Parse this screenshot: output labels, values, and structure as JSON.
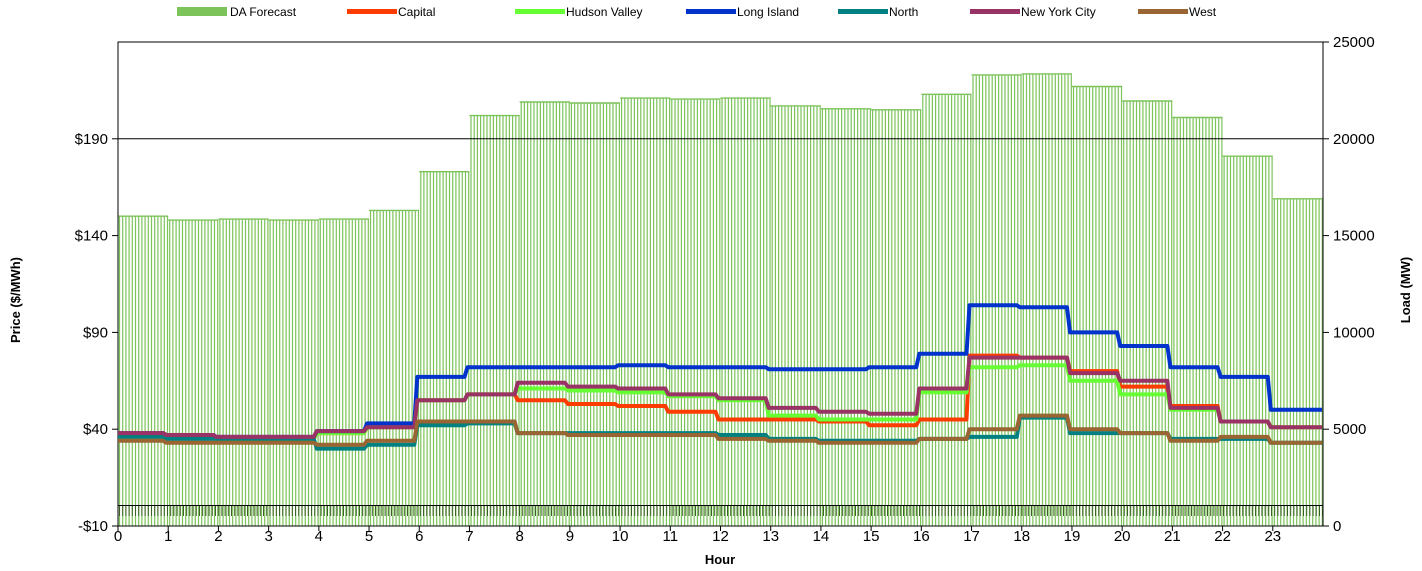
{
  "chart_data": {
    "type": "line",
    "title": "",
    "xlabel": "Hour",
    "ylabel_left": "Price ($/MWh)",
    "ylabel_right": "Load (MW)",
    "x": [
      0,
      1,
      2,
      3,
      4,
      5,
      6,
      7,
      8,
      9,
      10,
      11,
      12,
      13,
      14,
      15,
      16,
      17,
      18,
      19,
      20,
      21,
      22,
      23
    ],
    "xlim": [
      0,
      24
    ],
    "ylim_left": [
      -10,
      240
    ],
    "ylim_right": [
      0,
      25000
    ],
    "left_ticks": [
      -10,
      40,
      90,
      140,
      190
    ],
    "left_tick_labels": [
      "-$10",
      "$40",
      "$90",
      "$140",
      "$190"
    ],
    "right_ticks": [
      0,
      5000,
      10000,
      15000,
      20000,
      25000
    ],
    "right_tick_labels": [
      "0",
      "5000",
      "10000",
      "15000",
      "20000",
      "25000"
    ],
    "gridline_value": 190,
    "legend_position": "top",
    "bars": {
      "name": "DA Forecast",
      "color": "#7cc35a",
      "values": [
        16000,
        15800,
        15850,
        15800,
        15850,
        16300,
        18300,
        21200,
        21900,
        21850,
        22100,
        22050,
        22100,
        21700,
        21550,
        21500,
        22300,
        23300,
        23350,
        22700,
        21950,
        21100,
        19100,
        16900
      ]
    },
    "series": [
      {
        "name": "Capital",
        "color": "#ff3c00",
        "values": [
          38,
          36,
          35,
          35,
          38,
          41,
          55,
          58,
          55,
          53,
          52,
          49,
          45,
          45,
          44,
          42,
          45,
          78,
          77,
          70,
          62,
          52,
          44,
          41
        ]
      },
      {
        "name": "Hudson Valley",
        "color": "#66ff33",
        "values": [
          38,
          36,
          35,
          35,
          38,
          41,
          55,
          58,
          61,
          60,
          59,
          57,
          55,
          47,
          45,
          45,
          59,
          72,
          73,
          65,
          58,
          50,
          44,
          41
        ]
      },
      {
        "name": "Long Island",
        "color": "#0033cc",
        "values": [
          38,
          37,
          36,
          36,
          39,
          43,
          67,
          72,
          72,
          72,
          73,
          72,
          72,
          71,
          71,
          72,
          79,
          104,
          103,
          90,
          83,
          72,
          67,
          50
        ]
      },
      {
        "name": "North",
        "color": "#008080",
        "values": [
          36,
          35,
          35,
          35,
          30,
          32,
          42,
          43,
          38,
          38,
          38,
          38,
          37,
          35,
          34,
          34,
          35,
          36,
          46,
          38,
          38,
          35,
          35,
          33
        ]
      },
      {
        "name": "New York City",
        "color": "#993366",
        "values": [
          38,
          37,
          36,
          36,
          39,
          41,
          55,
          58,
          64,
          62,
          61,
          58,
          56,
          51,
          49,
          48,
          61,
          77,
          77,
          69,
          65,
          51,
          44,
          41
        ]
      },
      {
        "name": "West",
        "color": "#996633",
        "values": [
          34,
          33,
          33,
          33,
          32,
          34,
          44,
          44,
          38,
          37,
          37,
          37,
          35,
          34,
          33,
          33,
          35,
          40,
          47,
          40,
          38,
          34,
          36,
          33
        ]
      }
    ]
  }
}
